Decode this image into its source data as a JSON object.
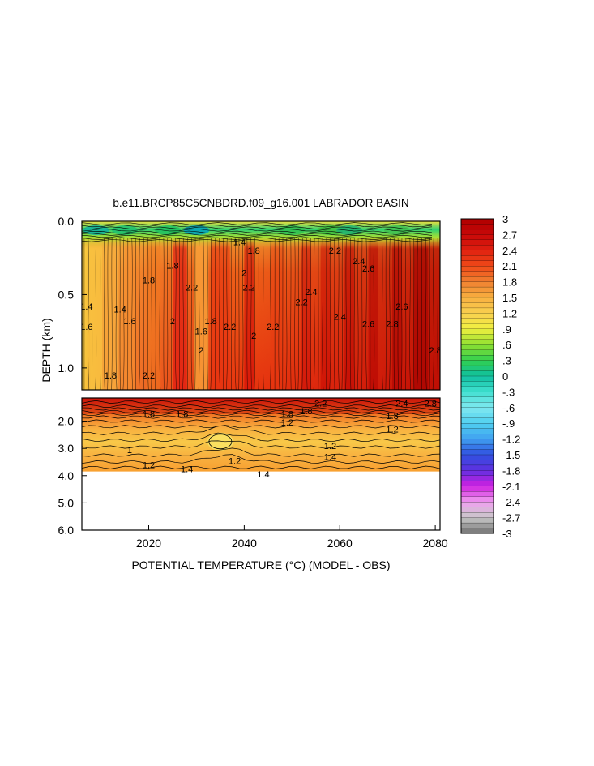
{
  "chart_data": {
    "type": "heatmap",
    "title": "b.e11.BRCP85C5CNBDRD.f09_g16.001 LABRADOR BASIN",
    "xlabel": "POTENTIAL TEMPERATURE (°C) (MODEL - OBS)",
    "ylabel": "DEPTH (km)",
    "x_range": [
      2006,
      2081
    ],
    "x_ticks": [
      "2020",
      "2040",
      "2060",
      "2080"
    ],
    "x_tick_values": [
      2020,
      2040,
      2060,
      2080
    ],
    "upper_panel": {
      "depth_range_km": [
        0.0,
        1.15
      ],
      "y_ticks": [
        "0.0",
        "0.5",
        "1.0"
      ],
      "y_tick_values": [
        0.0,
        0.5,
        1.0
      ]
    },
    "lower_panel": {
      "depth_range_km": [
        1.15,
        6.0
      ],
      "y_ticks": [
        "2.0",
        "3.0",
        "4.0",
        "5.0",
        "6.0"
      ],
      "y_tick_values": [
        2.0,
        3.0,
        4.0,
        5.0,
        6.0
      ],
      "data_bottom_km": 3.85
    },
    "colorbar": {
      "range": [
        -3,
        3
      ],
      "tick_labels": [
        "3",
        "2.7",
        "2.4",
        "2.1",
        "1.8",
        "1.5",
        "1.2",
        ".9",
        ".6",
        ".3",
        "0",
        "-.3",
        "-.6",
        "-.9",
        "-1.2",
        "-1.5",
        "-1.8",
        "-2.1",
        "-2.4",
        "-2.7",
        "-3"
      ],
      "tick_values": [
        3,
        2.7,
        2.4,
        2.1,
        1.8,
        1.5,
        1.2,
        0.9,
        0.6,
        0.3,
        0,
        -0.3,
        -0.6,
        -0.9,
        -1.2,
        -1.5,
        -1.8,
        -2.1,
        -2.4,
        -2.7,
        -3
      ]
    },
    "contour_labels": [
      {
        "text": "1.4",
        "year": 2007,
        "depth_km": 0.58
      },
      {
        "text": "1.6",
        "year": 2007,
        "depth_km": 0.72
      },
      {
        "text": "1.4",
        "year": 2014,
        "depth_km": 0.6
      },
      {
        "text": "1.6",
        "year": 2016,
        "depth_km": 0.68
      },
      {
        "text": "1.8",
        "year": 2012,
        "depth_km": 1.05
      },
      {
        "text": "1.8",
        "year": 2020,
        "depth_km": 0.4
      },
      {
        "text": "1.8",
        "year": 2025,
        "depth_km": 0.3
      },
      {
        "text": "2",
        "year": 2025,
        "depth_km": 0.68
      },
      {
        "text": "2.2",
        "year": 2020,
        "depth_km": 1.05
      },
      {
        "text": "2.2",
        "year": 2029,
        "depth_km": 0.45
      },
      {
        "text": "1.6",
        "year": 2031,
        "depth_km": 0.75
      },
      {
        "text": "1.8",
        "year": 2033,
        "depth_km": 0.68
      },
      {
        "text": "2",
        "year": 2031,
        "depth_km": 0.88
      },
      {
        "text": "2.2",
        "year": 2037,
        "depth_km": 0.72
      },
      {
        "text": "2",
        "year": 2040,
        "depth_km": 0.35
      },
      {
        "text": "2.2",
        "year": 2041,
        "depth_km": 0.45
      },
      {
        "text": "1.4",
        "year": 2039,
        "depth_km": 0.14
      },
      {
        "text": "1.8",
        "year": 2042,
        "depth_km": 0.2
      },
      {
        "text": "2",
        "year": 2042,
        "depth_km": 0.78
      },
      {
        "text": "2.2",
        "year": 2046,
        "depth_km": 0.72
      },
      {
        "text": "2.2",
        "year": 2052,
        "depth_km": 0.55
      },
      {
        "text": "2.4",
        "year": 2054,
        "depth_km": 0.48
      },
      {
        "text": "2.2",
        "year": 2059,
        "depth_km": 0.2
      },
      {
        "text": "2.4",
        "year": 2060,
        "depth_km": 0.65
      },
      {
        "text": "2.4",
        "year": 2064,
        "depth_km": 0.27
      },
      {
        "text": "2.6",
        "year": 2066,
        "depth_km": 0.32
      },
      {
        "text": "2.6",
        "year": 2066,
        "depth_km": 0.7
      },
      {
        "text": "2.8",
        "year": 2071,
        "depth_km": 0.7
      },
      {
        "text": "2.6",
        "year": 2073,
        "depth_km": 0.58
      },
      {
        "text": "2.8",
        "year": 2080,
        "depth_km": 0.88
      },
      {
        "text": "1.8",
        "year": 2027,
        "depth_km": 1.73
      },
      {
        "text": "1.8",
        "year": 2020,
        "depth_km": 1.73
      },
      {
        "text": "1.8",
        "year": 2049,
        "depth_km": 1.73
      },
      {
        "text": "1.8",
        "year": 2053,
        "depth_km": 1.63
      },
      {
        "text": "2.2",
        "year": 2056,
        "depth_km": 1.35
      },
      {
        "text": "1.2",
        "year": 2049,
        "depth_km": 2.05
      },
      {
        "text": "1.8",
        "year": 2071,
        "depth_km": 1.8
      },
      {
        "text": "1.2",
        "year": 2071,
        "depth_km": 2.3
      },
      {
        "text": "2.4",
        "year": 2073,
        "depth_km": 1.35
      },
      {
        "text": "2.8",
        "year": 2079,
        "depth_km": 1.35
      },
      {
        "text": "1.2",
        "year": 2058,
        "depth_km": 2.9
      },
      {
        "text": "1.4",
        "year": 2058,
        "depth_km": 3.3
      },
      {
        "text": "1.2",
        "year": 2038,
        "depth_km": 3.45
      },
      {
        "text": "1.4",
        "year": 2044,
        "depth_km": 3.95
      },
      {
        "text": "1.4",
        "year": 2028,
        "depth_km": 3.75
      },
      {
        "text": "1",
        "year": 2016,
        "depth_km": 3.05
      },
      {
        "text": "1.2",
        "year": 2020,
        "depth_km": 3.6
      }
    ]
  }
}
